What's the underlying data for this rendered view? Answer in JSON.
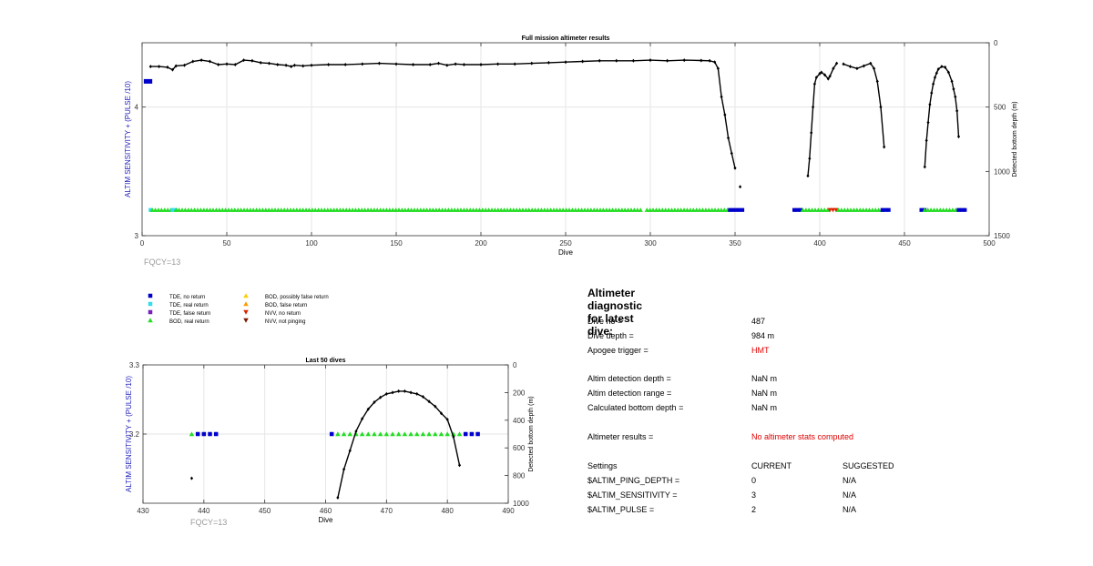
{
  "colors": {
    "tde_no_return": "#0000cc",
    "tde_real_return": "#33ddee",
    "tde_false_return": "#7722bb",
    "bod_real_return": "#22dd22",
    "bod_possibly_false": "#ffcc00",
    "bod_false_return": "#ff9900",
    "nvv_no_return": "#dd2200",
    "nvv_not_pinging": "#7a1a00",
    "axis_label_left": "#2222bb",
    "fqcy_text": "#999999",
    "alert_text": "#e00000"
  },
  "legend": [
    {
      "label": "TDE, no return",
      "marker": "square",
      "color": "#0000cc"
    },
    {
      "label": "TDE, real return",
      "marker": "square",
      "color": "#33ddee"
    },
    {
      "label": "TDE, false return",
      "marker": "square",
      "color": "#7722bb"
    },
    {
      "label": "BOD, real return",
      "marker": "triangle-up",
      "color": "#22dd22"
    },
    {
      "label": "BOD, possibly false return",
      "marker": "triangle-up",
      "color": "#ffcc00"
    },
    {
      "label": "BOD, false return",
      "marker": "triangle-up",
      "color": "#ff9900"
    },
    {
      "label": "NVV, no return",
      "marker": "triangle-down",
      "color": "#dd2200"
    },
    {
      "label": "NVV, not pinging",
      "marker": "triangle-down",
      "color": "#7a1a00"
    }
  ],
  "chart_data": [
    {
      "type": "scatter",
      "title": "Full mission altimeter results",
      "xlabel": "Dive",
      "ylabel_left": "ALTIM SENSITIVITY + (PULSE /10)",
      "ylabel_right": "Detected bottom depth (m)",
      "footnote": "FQCY=13",
      "xlim": [
        0,
        500
      ],
      "ylim_left": [
        3,
        4.5
      ],
      "ylim_right": [
        1500,
        0
      ],
      "right_axis_reversed": true,
      "xticks": [
        0,
        50,
        100,
        150,
        200,
        250,
        300,
        350,
        400,
        450,
        500
      ],
      "yticks_left": [
        3,
        4
      ],
      "yticks_right": [
        0,
        500,
        1000,
        1500
      ],
      "grid": true,
      "settings_markers": [
        {
          "name": "TDE, no return",
          "x_ranges": [
            [
              1,
              6
            ]
          ],
          "y": 4.2
        }
      ],
      "status_segments_y": 3.2,
      "status_segments": [
        {
          "from": 5,
          "to": 6,
          "kind": "tde_real_return"
        },
        {
          "from": 6,
          "to": 18,
          "kind": "bod_real_return"
        },
        {
          "from": 18,
          "to": 20,
          "kind": "tde_real_return"
        },
        {
          "from": 20,
          "to": 295,
          "kind": "bod_real_return"
        },
        {
          "from": 298,
          "to": 347,
          "kind": "bod_real_return"
        },
        {
          "from": 347,
          "to": 355,
          "kind": "tde_no_return"
        },
        {
          "from": 385,
          "to": 390,
          "kind": "tde_no_return"
        },
        {
          "from": 390,
          "to": 406,
          "kind": "bod_real_return"
        },
        {
          "from": 406,
          "to": 411,
          "kind": "nvv_no_return"
        },
        {
          "from": 411,
          "to": 437,
          "kind": "bod_real_return"
        },
        {
          "from": 437,
          "to": 442,
          "kind": "tde_no_return"
        },
        {
          "from": 460,
          "to": 462,
          "kind": "tde_no_return"
        },
        {
          "from": 462,
          "to": 482,
          "kind": "bod_real_return"
        },
        {
          "from": 482,
          "to": 486,
          "kind": "tde_no_return"
        }
      ],
      "depth_series": [
        {
          "name": "detected bottom depth",
          "points": [
            [
              5,
              185
            ],
            [
              10,
              185
            ],
            [
              15,
              190
            ],
            [
              18,
              210
            ],
            [
              20,
              180
            ],
            [
              25,
              175
            ],
            [
              30,
              145
            ],
            [
              35,
              135
            ],
            [
              40,
              145
            ],
            [
              45,
              170
            ],
            [
              50,
              165
            ],
            [
              55,
              170
            ],
            [
              60,
              135
            ],
            [
              65,
              140
            ],
            [
              70,
              155
            ],
            [
              75,
              160
            ],
            [
              80,
              170
            ],
            [
              85,
              175
            ],
            [
              88,
              185
            ],
            [
              90,
              175
            ],
            [
              95,
              180
            ],
            [
              100,
              175
            ],
            [
              110,
              170
            ],
            [
              120,
              170
            ],
            [
              130,
              165
            ],
            [
              140,
              160
            ],
            [
              150,
              165
            ],
            [
              160,
              170
            ],
            [
              170,
              170
            ],
            [
              175,
              160
            ],
            [
              180,
              175
            ],
            [
              185,
              165
            ],
            [
              190,
              170
            ],
            [
              200,
              170
            ],
            [
              210,
              165
            ],
            [
              220,
              165
            ],
            [
              230,
              160
            ],
            [
              240,
              155
            ],
            [
              250,
              150
            ],
            [
              260,
              145
            ],
            [
              270,
              140
            ],
            [
              280,
              140
            ],
            [
              290,
              140
            ],
            [
              300,
              135
            ],
            [
              310,
              140
            ],
            [
              320,
              135
            ],
            [
              330,
              138
            ],
            [
              335,
              140
            ],
            [
              338,
              150
            ],
            [
              340,
              200
            ],
            [
              342,
              420
            ],
            [
              344,
              560
            ],
            [
              346,
              740
            ],
            [
              348,
              860
            ],
            [
              350,
              975
            ]
          ]
        },
        {
          "name": "isolated",
          "points": [
            [
              353,
              1120
            ]
          ]
        },
        {
          "name": "dives 393-405",
          "points": [
            [
              393,
              1035
            ],
            [
              394,
              900
            ],
            [
              395,
              700
            ],
            [
              396,
              500
            ],
            [
              397,
              320
            ],
            [
              398,
              270
            ],
            [
              400,
              240
            ],
            [
              401,
              230
            ],
            [
              403,
              250
            ],
            [
              405,
              280
            ],
            [
              406,
              260
            ],
            [
              408,
              200
            ],
            [
              410,
              160
            ]
          ]
        },
        {
          "name": "dives 414-438",
          "points": [
            [
              414,
              165
            ],
            [
              418,
              185
            ],
            [
              422,
              200
            ],
            [
              426,
              180
            ],
            [
              430,
              160
            ],
            [
              432,
              200
            ],
            [
              434,
              300
            ],
            [
              436,
              500
            ],
            [
              438,
              810
            ]
          ]
        },
        {
          "name": "dives 462-482",
          "points": [
            [
              462,
              965
            ],
            [
              463,
              760
            ],
            [
              464,
              620
            ],
            [
              465,
              480
            ],
            [
              466,
              390
            ],
            [
              467,
              320
            ],
            [
              468,
              270
            ],
            [
              469,
              235
            ],
            [
              470,
              205
            ],
            [
              472,
              185
            ],
            [
              474,
              190
            ],
            [
              476,
              230
            ],
            [
              478,
              300
            ],
            [
              479,
              360
            ],
            [
              480,
              420
            ],
            [
              481,
              530
            ],
            [
              482,
              730
            ]
          ]
        }
      ]
    },
    {
      "type": "scatter",
      "title": "Last 50 dives",
      "xlabel": "Dive",
      "ylabel_left": "ALTIM SENSITIVITY + (PULSE /10)",
      "ylabel_right": "Detected bottom depth (m)",
      "footnote": "FQCY=13",
      "xlim": [
        430,
        490
      ],
      "ylim_left": [
        3.1,
        3.3
      ],
      "ylim_right": [
        1000,
        0
      ],
      "right_axis_reversed": true,
      "xticks": [
        430,
        440,
        450,
        460,
        470,
        480,
        490
      ],
      "yticks_left": [
        3.2,
        3.3
      ],
      "yticks_left_labels": [
        "3.2",
        "3.3"
      ],
      "yticks_right": [
        0,
        200,
        400,
        600,
        800,
        1000
      ],
      "grid": true,
      "status_y": 3.2,
      "status_points": [
        {
          "x": 438,
          "kind": "bod_real_return"
        },
        {
          "x": 439,
          "kind": "tde_no_return"
        },
        {
          "x": 440,
          "kind": "tde_no_return"
        },
        {
          "x": 441,
          "kind": "tde_no_return"
        },
        {
          "x": 442,
          "kind": "tde_no_return"
        },
        {
          "x": 461,
          "kind": "tde_no_return"
        },
        {
          "x": 462,
          "kind": "bod_real_return"
        },
        {
          "x": 463,
          "kind": "bod_real_return"
        },
        {
          "x": 464,
          "kind": "bod_real_return"
        },
        {
          "x": 465,
          "kind": "bod_real_return"
        },
        {
          "x": 466,
          "kind": "bod_real_return"
        },
        {
          "x": 467,
          "kind": "bod_real_return"
        },
        {
          "x": 468,
          "kind": "bod_real_return"
        },
        {
          "x": 469,
          "kind": "bod_real_return"
        },
        {
          "x": 470,
          "kind": "bod_real_return"
        },
        {
          "x": 471,
          "kind": "bod_real_return"
        },
        {
          "x": 472,
          "kind": "bod_real_return"
        },
        {
          "x": 473,
          "kind": "bod_real_return"
        },
        {
          "x": 474,
          "kind": "bod_real_return"
        },
        {
          "x": 475,
          "kind": "bod_real_return"
        },
        {
          "x": 476,
          "kind": "bod_real_return"
        },
        {
          "x": 477,
          "kind": "bod_real_return"
        },
        {
          "x": 478,
          "kind": "bod_real_return"
        },
        {
          "x": 479,
          "kind": "bod_real_return"
        },
        {
          "x": 480,
          "kind": "bod_real_return"
        },
        {
          "x": 481,
          "kind": "bod_real_return"
        },
        {
          "x": 482,
          "kind": "bod_real_return"
        },
        {
          "x": 483,
          "kind": "tde_no_return"
        },
        {
          "x": 484,
          "kind": "tde_no_return"
        },
        {
          "x": 485,
          "kind": "tde_no_return"
        }
      ],
      "depth_series": [
        {
          "name": "isolated",
          "points": [
            [
              438,
              820
            ]
          ]
        },
        {
          "name": "dives 462-482",
          "points": [
            [
              462,
              960
            ],
            [
              463,
              755
            ],
            [
              464,
              620
            ],
            [
              465,
              480
            ],
            [
              466,
              390
            ],
            [
              467,
              320
            ],
            [
              468,
              270
            ],
            [
              469,
              235
            ],
            [
              470,
              210
            ],
            [
              471,
              200
            ],
            [
              472,
              190
            ],
            [
              473,
              190
            ],
            [
              474,
              200
            ],
            [
              475,
              210
            ],
            [
              476,
              230
            ],
            [
              477,
              265
            ],
            [
              478,
              300
            ],
            [
              479,
              350
            ],
            [
              480,
              395
            ],
            [
              481,
              520
            ],
            [
              482,
              725
            ]
          ]
        }
      ]
    }
  ],
  "diagnostic": {
    "title": "Altimeter diagnostic for latest dive:",
    "dive_no_label": "Dive no =",
    "dive_no": "487",
    "dive_depth_label": "Dive depth =",
    "dive_depth": "984 m",
    "apogee_label": "Apogee trigger =",
    "apogee": "HMT",
    "detect_depth_label": "Altim detection depth =",
    "detect_depth": "NaN m",
    "detect_range_label": "Altim detection range =",
    "detect_range": "NaN m",
    "calc_bottom_label": "Calculated bottom depth =",
    "calc_bottom": "NaN m",
    "results_label": "Altimeter results =",
    "results": "No altimeter stats computed",
    "settings_label": "Settings",
    "current_label": "CURRENT",
    "suggested_label": "SUGGESTED",
    "settings": [
      {
        "name": "$ALTIM_PING_DEPTH =",
        "current": "0",
        "suggested": "N/A"
      },
      {
        "name": "$ALTIM_SENSITIVITY =",
        "current": "3",
        "suggested": "N/A"
      },
      {
        "name": "$ALTIM_PULSE =",
        "current": "2",
        "suggested": "N/A"
      }
    ]
  }
}
